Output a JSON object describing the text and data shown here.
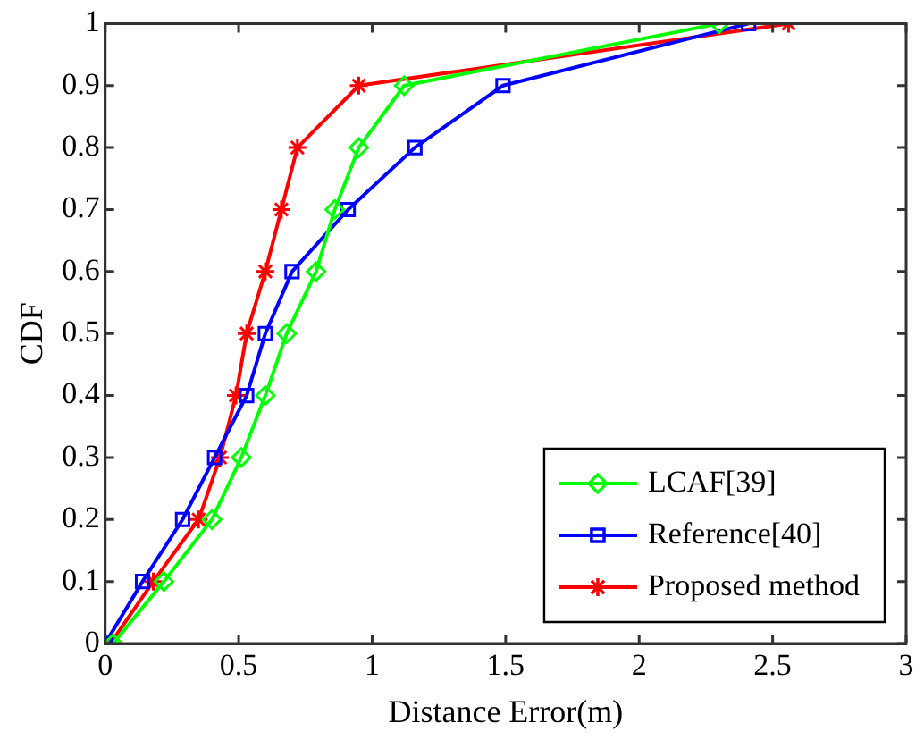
{
  "chart_data": {
    "type": "line",
    "xlabel": "Distance Error(m)",
    "ylabel": "CDF",
    "xlim": [
      0,
      3
    ],
    "xticks": [
      0,
      0.5,
      1,
      1.5,
      2,
      2.5,
      3
    ],
    "ylim": [
      0,
      1
    ],
    "yticks": [
      0,
      0.1,
      0.2,
      0.3,
      0.4,
      0.5,
      0.6,
      0.7,
      0.8,
      0.9,
      1
    ],
    "grid": false,
    "legend": "bottom right",
    "series": [
      {
        "name": "LCAF[39]",
        "color": "#00ff00",
        "marker": "diamond",
        "x": [
          0.03,
          0.22,
          0.4,
          0.51,
          0.6,
          0.68,
          0.79,
          0.86,
          0.95,
          1.12,
          2.3
        ],
        "values": [
          0,
          0.1,
          0.2,
          0.3,
          0.4,
          0.5,
          0.6,
          0.7,
          0.8,
          0.9,
          1
        ]
      },
      {
        "name": "Reference[40]",
        "color": "#0000ff",
        "marker": "square",
        "x": [
          0,
          0.14,
          0.29,
          0.41,
          0.53,
          0.6,
          0.7,
          0.91,
          1.16,
          1.49,
          2.41
        ],
        "values": [
          0,
          0.1,
          0.2,
          0.3,
          0.4,
          0.5,
          0.6,
          0.7,
          0.8,
          0.9,
          1
        ]
      },
      {
        "name": "Proposed method",
        "color": "#ff0000",
        "marker": "cross",
        "x": [
          0.02,
          0.18,
          0.35,
          0.43,
          0.49,
          0.53,
          0.6,
          0.66,
          0.72,
          0.95,
          2.56
        ],
        "values": [
          0,
          0.1,
          0.2,
          0.3,
          0.4,
          0.5,
          0.6,
          0.7,
          0.8,
          0.9,
          1
        ]
      }
    ]
  }
}
